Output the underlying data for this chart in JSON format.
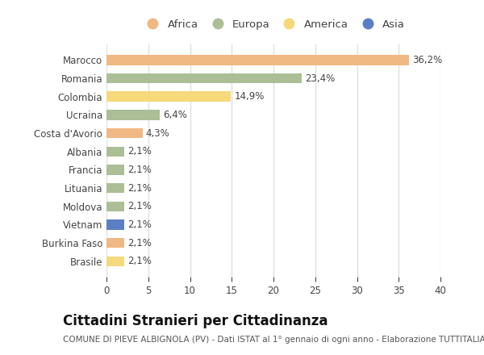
{
  "countries": [
    "Marocco",
    "Romania",
    "Colombia",
    "Ucraina",
    "Costa d'Avorio",
    "Albania",
    "Francia",
    "Lituania",
    "Moldova",
    "Vietnam",
    "Burkina Faso",
    "Brasile"
  ],
  "values": [
    36.2,
    23.4,
    14.9,
    6.4,
    4.3,
    2.1,
    2.1,
    2.1,
    2.1,
    2.1,
    2.1,
    2.1
  ],
  "labels": [
    "36,2%",
    "23,4%",
    "14,9%",
    "6,4%",
    "4,3%",
    "2,1%",
    "2,1%",
    "2,1%",
    "2,1%",
    "2,1%",
    "2,1%",
    "2,1%"
  ],
  "continents": [
    "Africa",
    "Europa",
    "America",
    "Europa",
    "Africa",
    "Europa",
    "Europa",
    "Europa",
    "Europa",
    "Asia",
    "Africa",
    "America"
  ],
  "colors": {
    "Africa": "#F0B882",
    "Europa": "#ABBE96",
    "America": "#F5D97A",
    "Asia": "#5B7FC4"
  },
  "legend_order": [
    "Africa",
    "Europa",
    "America",
    "Asia"
  ],
  "xlim": [
    0,
    40
  ],
  "xticks": [
    0,
    5,
    10,
    15,
    20,
    25,
    30,
    35,
    40
  ],
  "title": "Cittadini Stranieri per Cittadinanza",
  "subtitle": "COMUNE DI PIEVE ALBIGNOLA (PV) - Dati ISTAT al 1° gennaio di ogni anno - Elaborazione TUTTITALIA.IT",
  "bg_color": "#ffffff",
  "plot_bg_color": "#ffffff",
  "bar_height": 0.55,
  "title_fontsize": 12,
  "subtitle_fontsize": 7.5,
  "label_fontsize": 8.5,
  "tick_fontsize": 8.5,
  "legend_fontsize": 9.5,
  "grid_color": "#e0e0e0",
  "text_color": "#444444"
}
